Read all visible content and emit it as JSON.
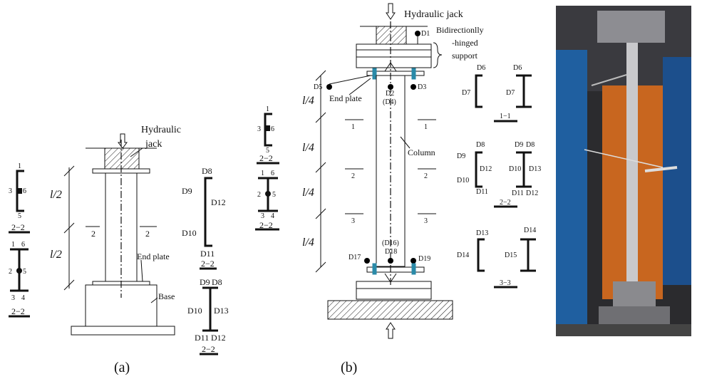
{
  "panel_a": {
    "jack": [
      "Hydraulic",
      "jack"
    ],
    "lengths": [
      "l/2",
      "l/2"
    ],
    "section_cut": [
      "2",
      "2"
    ],
    "end_plate": "End plate",
    "base": "Base",
    "bolt_section_1": {
      "labels": [
        "1",
        "3",
        "6",
        "5"
      ],
      "title": "2−2"
    },
    "bolt_section_2": {
      "labels": [
        "1",
        "6",
        "2",
        "5",
        "3",
        "4"
      ],
      "title": "2−2"
    },
    "gauge_section_1": {
      "labels": [
        "D8",
        "D9",
        "D12",
        "D10",
        "D11"
      ],
      "title": "2−2"
    },
    "gauge_section_2": {
      "labels": [
        "D9",
        "D8",
        "D10",
        "D13",
        "D11",
        "D12"
      ],
      "title": "2−2"
    },
    "caption": "(a)"
  },
  "panel_b": {
    "bolt_section_1": {
      "labels": [
        "1",
        "3",
        "6",
        "5"
      ],
      "title": "2−2"
    },
    "bolt_section_2": {
      "labels": [
        "1",
        "6",
        "2",
        "5",
        "3",
        "4"
      ],
      "title": "2−2"
    },
    "jack": "Hydraulic jack",
    "support": [
      "Bidirectionlly",
      "-hinged",
      "support"
    ],
    "top_gauges": [
      "D1",
      "D5",
      "D2",
      "(D4)",
      "D3"
    ],
    "end_plate": "End plate",
    "lengths": [
      "l/4",
      "l/4",
      "l/4",
      "l/4"
    ],
    "section_cuts": [
      "1",
      "1",
      "2",
      "2",
      "3",
      "3"
    ],
    "column": "Column",
    "bottom_gauges": [
      "(D16)",
      "D18",
      "D17",
      "D19"
    ],
    "section_1_1": {
      "labels": [
        "D6",
        "D7",
        "D6",
        "D7"
      ],
      "title": "1−1"
    },
    "section_2_2": {
      "labels": [
        "D8",
        "D9",
        "D12",
        "D10",
        "D11",
        "D9",
        "D8",
        "D10",
        "D13",
        "D11",
        "D12"
      ],
      "title": "2−2"
    },
    "section_3_3": {
      "labels": [
        "D13",
        "D14",
        "D14",
        "D15"
      ],
      "title": "3−3"
    },
    "caption": "(b)"
  }
}
